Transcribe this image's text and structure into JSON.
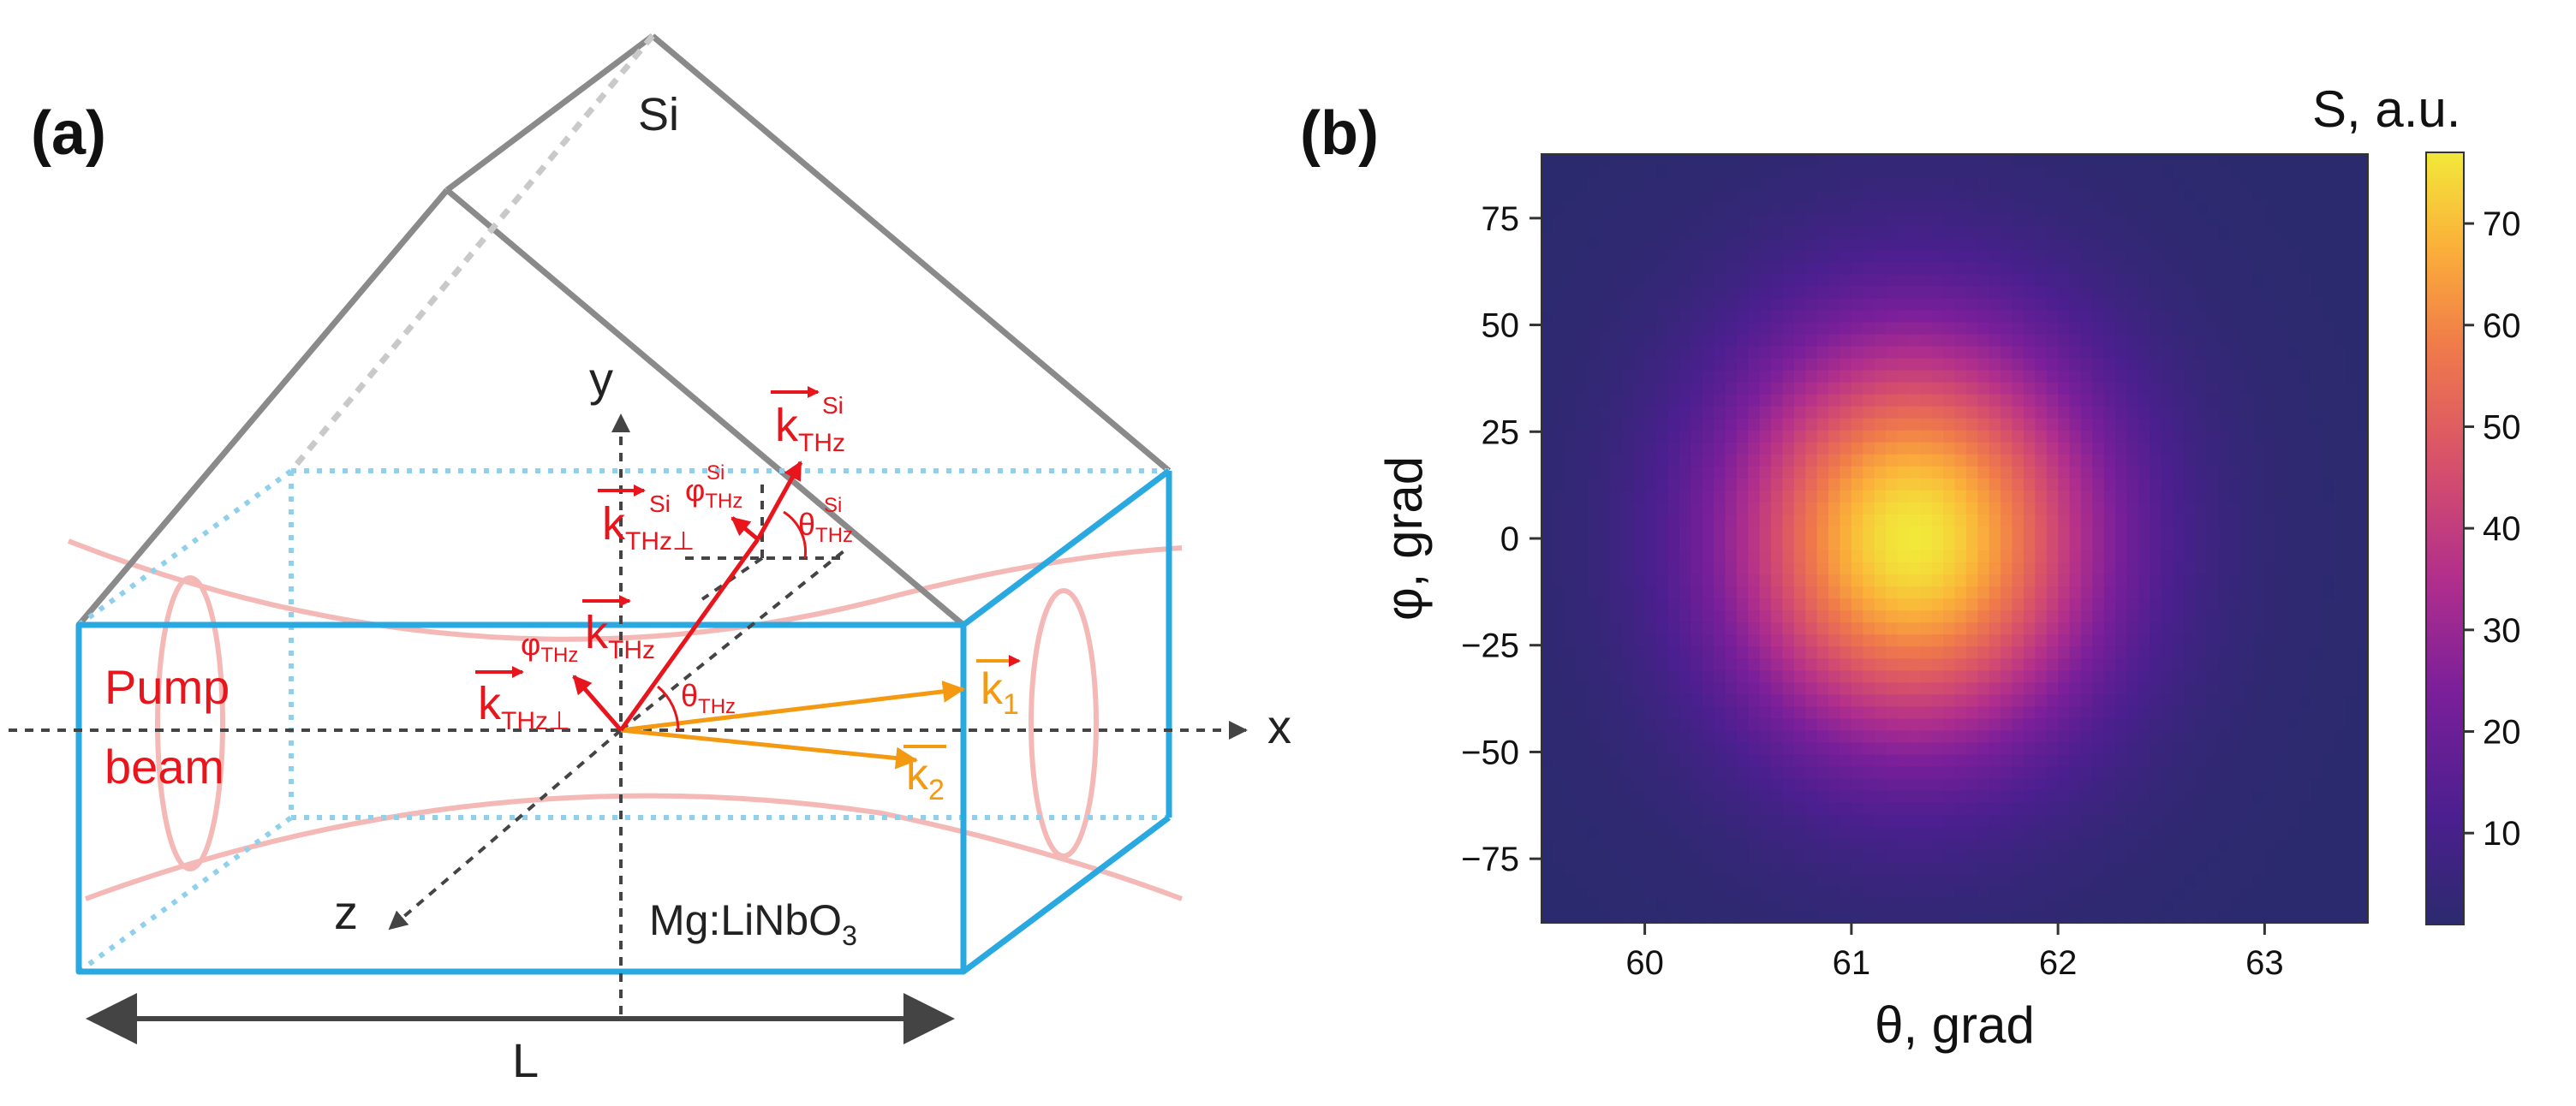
{
  "panel_a": {
    "label": "(a)",
    "si_label": "Si",
    "crystal_label": "Mg:LiNbO",
    "crystal_subscript": "3",
    "pump_line1": "Pump",
    "pump_line2": "beam",
    "axis_x": "x",
    "axis_y": "y",
    "axis_z": "z",
    "length_label": "L",
    "vectors": {
      "k": "k",
      "thz_sub": "THz",
      "si_sup": "Si",
      "perp": "⊥",
      "theta": "θ",
      "phi": "φ",
      "k1_sub": "1",
      "k2_sub": "2"
    },
    "colors": {
      "crystal_edge": "#29a9e0",
      "prism_edge": "#8a8a8a",
      "thz_vectors": "#e8151c",
      "pump_vectors": "#f39a12",
      "pump_beam": "#f4b9b6"
    }
  },
  "panel_b": {
    "label": "(b)",
    "colorbar_title": "S, a.u."
  },
  "chart_data": {
    "type": "heatmap",
    "title": "",
    "xlabel": "θ, grad",
    "ylabel": "φ, grad",
    "xlim": [
      59.5,
      63.5
    ],
    "ylim": [
      -90,
      90
    ],
    "x_ticks": [
      60,
      61,
      62,
      63
    ],
    "y_ticks": [
      75,
      50,
      25,
      0,
      -25,
      -50,
      -75
    ],
    "y_tick_labels": [
      "75",
      "50",
      "25",
      "0",
      "−25",
      "−50",
      "−75"
    ],
    "peak": {
      "theta": 61.3,
      "phi": 0,
      "value": 77
    },
    "peak_width": {
      "theta": 0.9,
      "phi": 48
    },
    "baseline": 1,
    "colorbar": {
      "label": "S, a.u.",
      "range": [
        1,
        77
      ],
      "ticks": [
        10,
        20,
        30,
        40,
        50,
        60,
        70
      ],
      "colormap": "plasma"
    }
  }
}
